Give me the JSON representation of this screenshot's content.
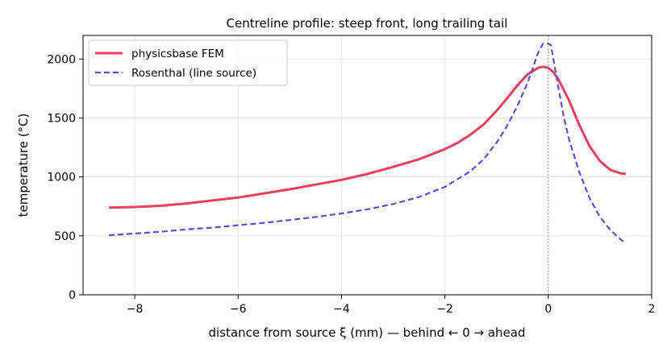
{
  "chart_data": {
    "type": "line",
    "title": "Centreline profile: steep front, long trailing tail",
    "xlabel": "distance from source ξ (mm) — behind ← 0 → ahead",
    "ylabel": "temperature (°C)",
    "xlim": [
      -9,
      2
    ],
    "ylim": [
      0,
      2200
    ],
    "xticks": [
      -8,
      -6,
      -4,
      -2,
      0,
      2
    ],
    "xtick_labels": [
      "−8",
      "−6",
      "−4",
      "−2",
      "0",
      "2"
    ],
    "yticks": [
      0,
      500,
      1000,
      1500,
      2000
    ],
    "ytick_labels": [
      "0",
      "500",
      "1000",
      "1500",
      "2000"
    ],
    "grid": true,
    "legend": "top-left",
    "reference_line_x": 0,
    "series": [
      {
        "name": "physicsbase FEM",
        "color": "#e8405e",
        "style": "solid",
        "x": [
          -8.5,
          -8.0,
          -7.5,
          -7.0,
          -6.5,
          -6.0,
          -5.5,
          -5.0,
          -4.5,
          -4.0,
          -3.5,
          -3.0,
          -2.5,
          -2.0,
          -1.75,
          -1.5,
          -1.25,
          -1.0,
          -0.8,
          -0.6,
          -0.4,
          -0.2,
          -0.1,
          0.0,
          0.1,
          0.2,
          0.4,
          0.6,
          0.8,
          1.0,
          1.2,
          1.4,
          1.5
        ],
        "y": [
          740,
          745,
          755,
          775,
          800,
          825,
          860,
          895,
          935,
          975,
          1025,
          1085,
          1150,
          1235,
          1290,
          1360,
          1445,
          1560,
          1665,
          1775,
          1870,
          1925,
          1935,
          1925,
          1890,
          1825,
          1650,
          1440,
          1260,
          1135,
          1060,
          1030,
          1025
        ]
      },
      {
        "name": "Rosenthal (line source)",
        "color": "#5a4fe0",
        "style": "dashed",
        "x": [
          -8.5,
          -8.0,
          -7.5,
          -7.0,
          -6.5,
          -6.0,
          -5.5,
          -5.0,
          -4.5,
          -4.0,
          -3.5,
          -3.0,
          -2.5,
          -2.0,
          -1.5,
          -1.25,
          -1.0,
          -0.8,
          -0.6,
          -0.4,
          -0.3,
          -0.2,
          -0.1,
          0.0,
          0.05,
          0.1,
          0.2,
          0.3,
          0.4,
          0.6,
          0.8,
          1.0,
          1.2,
          1.4,
          1.5
        ],
        "y": [
          505,
          520,
          535,
          555,
          570,
          590,
          610,
          635,
          660,
          690,
          725,
          770,
          830,
          915,
          1050,
          1150,
          1290,
          1430,
          1600,
          1800,
          1920,
          2050,
          2130,
          2130,
          2120,
          2000,
          1750,
          1510,
          1320,
          1040,
          820,
          660,
          550,
          470,
          435
        ]
      }
    ]
  }
}
